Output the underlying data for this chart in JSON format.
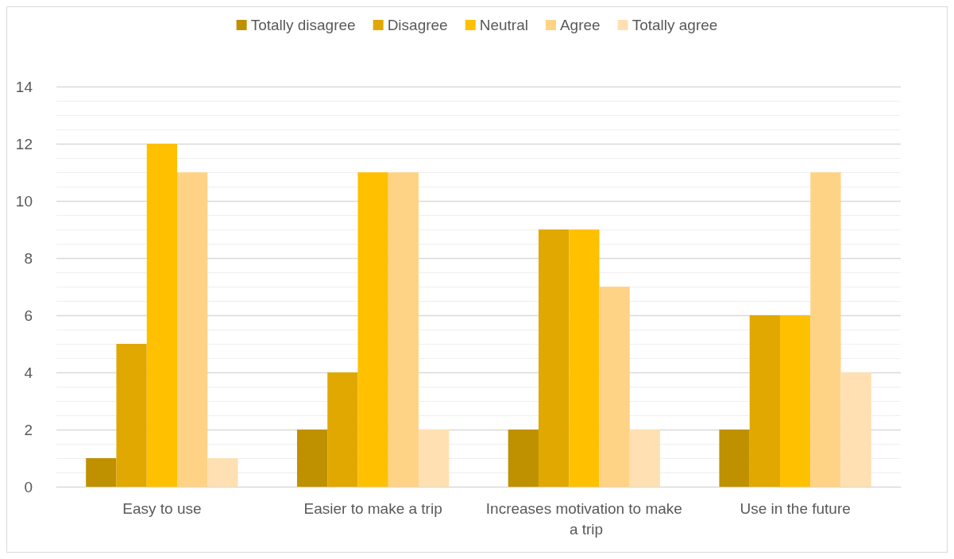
{
  "chart_data": {
    "type": "bar",
    "categories": [
      "Easy to use",
      "Easier to make a trip",
      "Increases motivation to make a trip",
      "Use in the future"
    ],
    "series": [
      {
        "name": "Totally disagree",
        "color": "#bf9000",
        "values": [
          1,
          2,
          2,
          2
        ]
      },
      {
        "name": "Disagree",
        "color": "#e0a800",
        "values": [
          5,
          4,
          9,
          6
        ]
      },
      {
        "name": "Neutral",
        "color": "#ffc000",
        "values": [
          12,
          11,
          9,
          6
        ]
      },
      {
        "name": "Agree",
        "color": "#ffd385",
        "values": [
          11,
          11,
          7,
          11
        ]
      },
      {
        "name": "Totally agree",
        "color": "#ffe0b3",
        "values": [
          1,
          2,
          2,
          4
        ]
      }
    ],
    "ylim": [
      0,
      14
    ],
    "yticks": [
      0,
      2,
      4,
      6,
      8,
      10,
      12,
      14
    ],
    "grid": "y",
    "legend": "top"
  }
}
